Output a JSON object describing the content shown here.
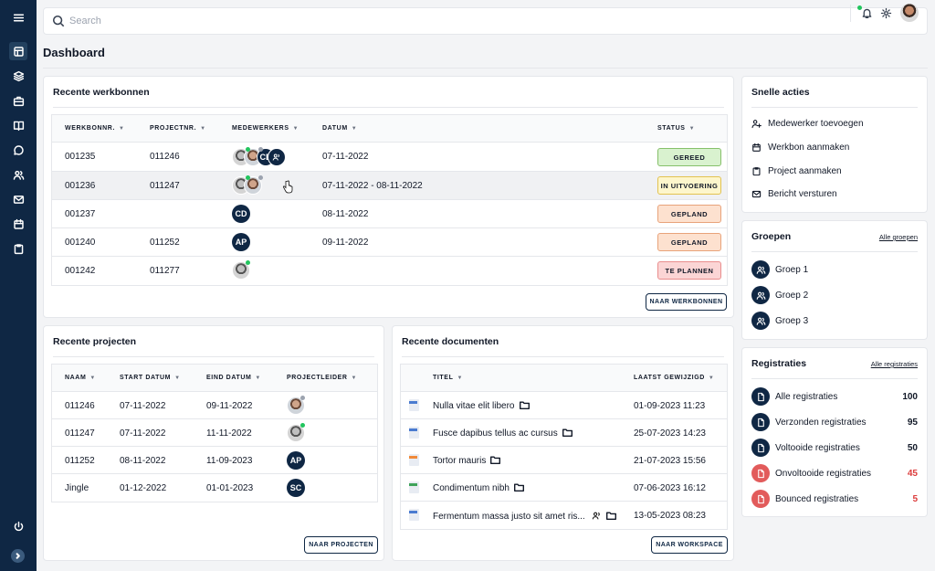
{
  "search": {
    "placeholder": "Search"
  },
  "page_title": "Dashboard",
  "workorders": {
    "title": "Recente werkbonnen",
    "headers": [
      "WERKBONNR.",
      "PROJECTNR.",
      "MEDEWERKERS",
      "DATUM",
      "STATUS"
    ],
    "rows": [
      {
        "nr": "001235",
        "project": "011246",
        "date": "07-11-2022",
        "status": "GEREED",
        "initials": "CD"
      },
      {
        "nr": "001236",
        "project": "011247",
        "date": "07-11-2022 - 08-11-2022",
        "status": "IN UITVOERING"
      },
      {
        "nr": "001237",
        "project": "",
        "date": "08-11-2022",
        "status": "GEPLAND",
        "initials": "CD"
      },
      {
        "nr": "001240",
        "project": "011252",
        "date": "09-11-2022",
        "status": "GEPLAND",
        "initials": "AP"
      },
      {
        "nr": "001242",
        "project": "011277",
        "date": "",
        "status": "TE PLANNEN"
      }
    ],
    "button": "NAAR WERKBONNEN"
  },
  "projects": {
    "title": "Recente projecten",
    "headers": [
      "NAAM",
      "START DATUM",
      "EIND DATUM",
      "PROJECTLEIDER"
    ],
    "rows": [
      {
        "name": "011246",
        "start": "07-11-2022",
        "end": "09-11-2022"
      },
      {
        "name": "011247",
        "start": "07-11-2022",
        "end": "11-11-2022"
      },
      {
        "name": "011252",
        "start": "08-11-2022",
        "end": "11-09-2023",
        "initials": "AP"
      },
      {
        "name": "Jingle",
        "start": "01-12-2022",
        "end": "01-01-2023",
        "initials": "SC"
      }
    ],
    "button": "NAAR PROJECTEN"
  },
  "documents": {
    "title": "Recente documenten",
    "headers": [
      "TITEL",
      "LAATST GEWIJZIGD"
    ],
    "rows": [
      {
        "title": "Nulla vitae elit libero",
        "date": "01-09-2023 11:23"
      },
      {
        "title": "Fusce dapibus tellus ac cursus",
        "date": "25-07-2023 14:23"
      },
      {
        "title": "Tortor mauris",
        "date": "21-07-2023 15:56"
      },
      {
        "title": "Condimentum nibh",
        "date": "07-06-2023 16:12"
      },
      {
        "title": "Fermentum massa justo sit amet ris...",
        "date": "13-05-2023 08:23"
      }
    ],
    "button": "NAAR WORKSPACE"
  },
  "quick_actions": {
    "title": "Snelle acties",
    "items": [
      "Medewerker toevoegen",
      "Werkbon aanmaken",
      "Project aanmaken",
      "Bericht versturen"
    ]
  },
  "groups": {
    "title": "Groepen",
    "link": "Alle groepen",
    "items": [
      "Groep 1",
      "Groep 2",
      "Groep 3"
    ]
  },
  "registrations": {
    "title": "Registraties",
    "link": "Alle registraties",
    "items": [
      {
        "label": "Alle registraties",
        "count": "100"
      },
      {
        "label": "Verzonden registraties",
        "count": "95"
      },
      {
        "label": "Voltooide registraties",
        "count": "50"
      },
      {
        "label": "Onvoltooide registraties",
        "count": "45"
      },
      {
        "label": "Bounced registraties",
        "count": "5"
      }
    ]
  },
  "colors": {
    "sidebar": "#0f2744",
    "accent_red": "#dc3c3c",
    "status_green": "#d9f2cf",
    "status_yellow": "#fdf6cc",
    "status_orange": "#fde1cf",
    "status_red": "#fbd5d5"
  }
}
